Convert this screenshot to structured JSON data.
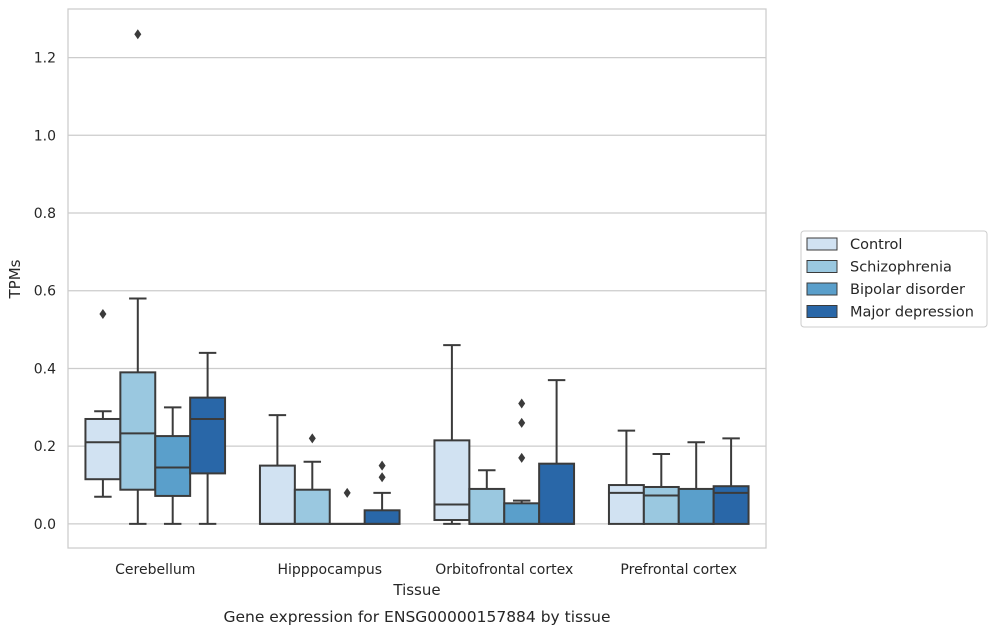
{
  "chart_data": {
    "type": "boxplot",
    "title": "",
    "caption": "Gene expression for ENSG00000157884 by tissue",
    "xlabel": "Tissue",
    "ylabel": "TPMs",
    "ylim": [
      -0.062,
      1.325
    ],
    "yticks": [
      0.0,
      0.2,
      0.4,
      0.6,
      0.8,
      1.0,
      1.2
    ],
    "ytick_labels": [
      "0.0",
      "0.2",
      "0.4",
      "0.6",
      "0.8",
      "1.0",
      "1.2"
    ],
    "grid": "y",
    "legend_position": "center-right",
    "categories": [
      "Cerebellum",
      "Hipppocampus",
      "Orbitofrontal cortex",
      "Prefrontal cortex"
    ],
    "series": [
      {
        "name": "Control",
        "color": "#d1e2f2",
        "boxes": [
          {
            "whisker_low": 0.07,
            "q1": 0.115,
            "median": 0.21,
            "q3": 0.27,
            "whisker_high": 0.29,
            "outliers": [
              0.54
            ]
          },
          {
            "whisker_low": 0.0,
            "q1": 0.0,
            "median": 0.0,
            "q3": 0.15,
            "whisker_high": 0.28,
            "outliers": []
          },
          {
            "whisker_low": 0.0,
            "q1": 0.01,
            "median": 0.05,
            "q3": 0.215,
            "whisker_high": 0.46,
            "outliers": []
          },
          {
            "whisker_low": 0.0,
            "q1": 0.0,
            "median": 0.08,
            "q3": 0.1,
            "whisker_high": 0.24,
            "outliers": []
          }
        ]
      },
      {
        "name": "Schizophrenia",
        "color": "#9ac8e0",
        "boxes": [
          {
            "whisker_low": 0.0,
            "q1": 0.088,
            "median": 0.233,
            "q3": 0.39,
            "whisker_high": 0.58,
            "outliers": [
              1.26
            ]
          },
          {
            "whisker_low": 0.0,
            "q1": 0.0,
            "median": 0.0,
            "q3": 0.088,
            "whisker_high": 0.16,
            "outliers": [
              0.22
            ]
          },
          {
            "whisker_low": 0.0,
            "q1": 0.0,
            "median": 0.0,
            "q3": 0.09,
            "whisker_high": 0.138,
            "outliers": []
          },
          {
            "whisker_low": 0.0,
            "q1": 0.0,
            "median": 0.073,
            "q3": 0.095,
            "whisker_high": 0.18,
            "outliers": []
          }
        ]
      },
      {
        "name": "Bipolar disorder",
        "color": "#5a9fcb",
        "boxes": [
          {
            "whisker_low": 0.0,
            "q1": 0.072,
            "median": 0.145,
            "q3": 0.226,
            "whisker_high": 0.3,
            "outliers": []
          },
          {
            "whisker_low": 0.0,
            "q1": 0.0,
            "median": 0.0,
            "q3": 0.0,
            "whisker_high": 0.0,
            "outliers": [
              0.08
            ]
          },
          {
            "whisker_low": 0.0,
            "q1": 0.0,
            "median": 0.0,
            "q3": 0.053,
            "whisker_high": 0.06,
            "outliers": [
              0.17,
              0.26,
              0.31
            ]
          },
          {
            "whisker_low": 0.0,
            "q1": 0.0,
            "median": 0.0,
            "q3": 0.09,
            "whisker_high": 0.21,
            "outliers": []
          }
        ]
      },
      {
        "name": "Major depression",
        "color": "#2967a8",
        "boxes": [
          {
            "whisker_low": 0.0,
            "q1": 0.13,
            "median": 0.27,
            "q3": 0.325,
            "whisker_high": 0.44,
            "outliers": []
          },
          {
            "whisker_low": 0.0,
            "q1": 0.0,
            "median": 0.0,
            "q3": 0.035,
            "whisker_high": 0.08,
            "outliers": [
              0.12,
              0.15
            ]
          },
          {
            "whisker_low": 0.0,
            "q1": 0.0,
            "median": 0.0,
            "q3": 0.155,
            "whisker_high": 0.37,
            "outliers": []
          },
          {
            "whisker_low": 0.0,
            "q1": 0.0,
            "median": 0.08,
            "q3": 0.097,
            "whisker_high": 0.22,
            "outliers": []
          }
        ]
      }
    ]
  }
}
